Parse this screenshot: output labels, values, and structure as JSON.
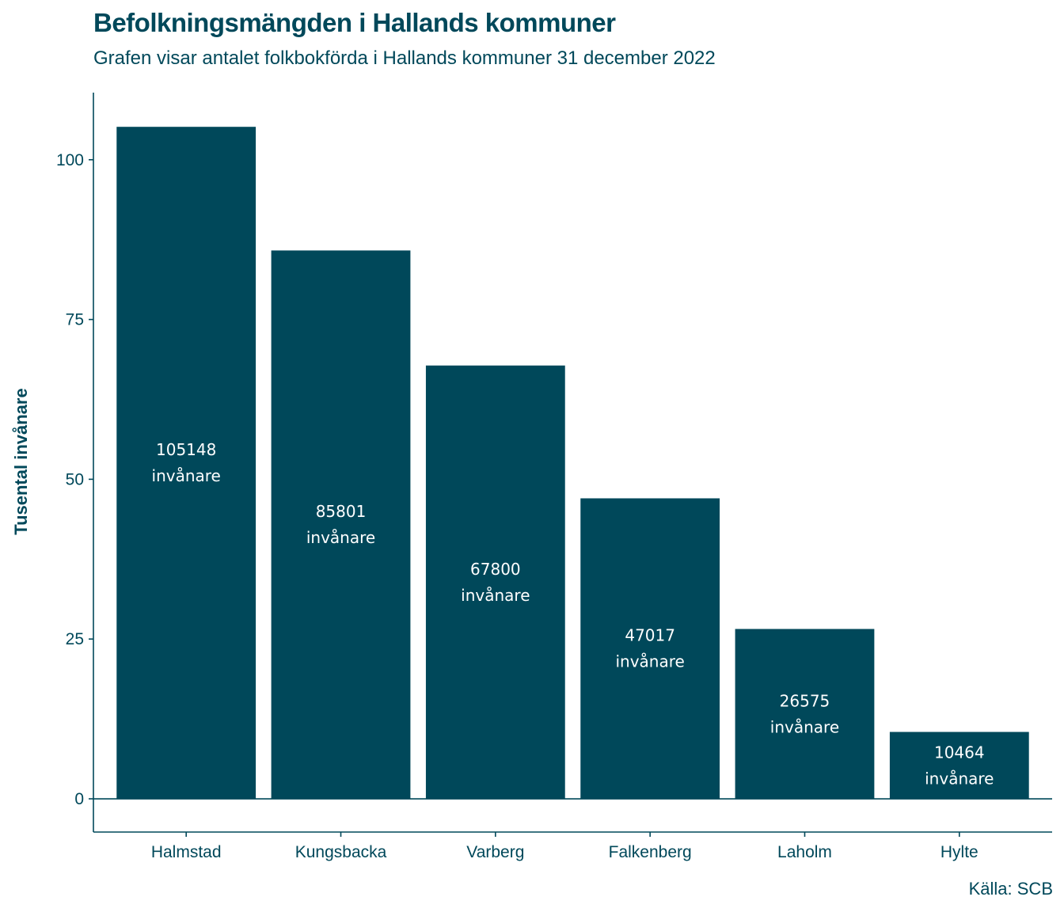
{
  "colors": {
    "bar": "#00485a",
    "text": "#00485a",
    "label": "#ffffff",
    "axis": "#00485a"
  },
  "chart_data": {
    "type": "bar",
    "title": "Befolkningsmängden i Hallands kommuner",
    "subtitle": "Grafen visar antalet folkbokförda i Hallands kommuner 31 december 2022",
    "xlabel": "",
    "ylabel": "Tusental invånare",
    "caption": "Källa: SCB",
    "categories": [
      "Halmstad",
      "Kungsbacka",
      "Varberg",
      "Falkenberg",
      "Laholm",
      "Hylte"
    ],
    "values": [
      105.148,
      85.801,
      67.8,
      47.017,
      26.575,
      10.464
    ],
    "data_labels": [
      [
        "105148",
        "invånare"
      ],
      [
        "85801",
        "invånare"
      ],
      [
        "67800",
        "invånare"
      ],
      [
        "47017",
        "invånare"
      ],
      [
        "26575",
        "invånare"
      ],
      [
        "10464",
        "invånare"
      ]
    ],
    "yticks": [
      0,
      25,
      50,
      75,
      100
    ],
    "ylim": [
      -5.2,
      110.5
    ],
    "grid": false,
    "legend": "none"
  }
}
